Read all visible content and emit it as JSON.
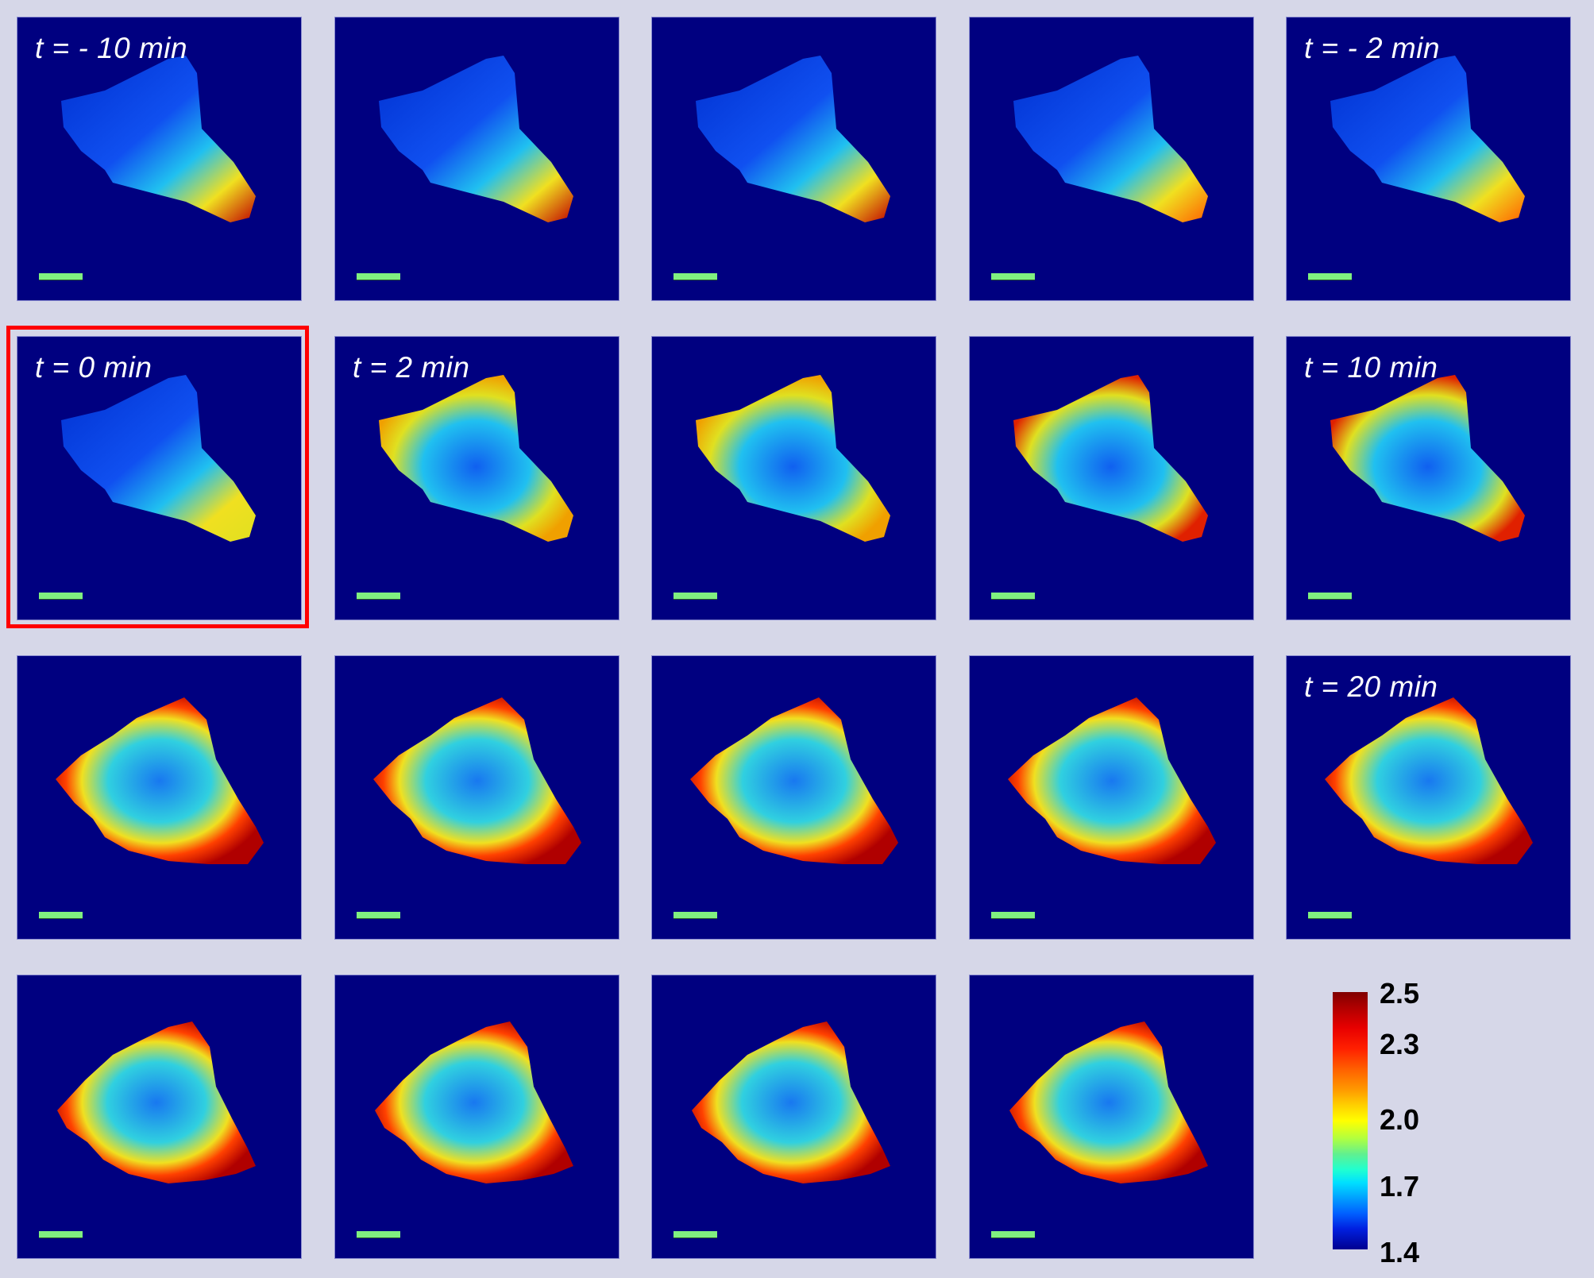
{
  "figure": {
    "background": "#d6d7e8",
    "panel_background": "#000080",
    "scale_bar_color": "#80f080",
    "highlight_color": "#ff0000",
    "highlighted_panel": "t = 0 min",
    "panels": [
      {
        "row": 0,
        "col": 0,
        "label": "t = - 10 min",
        "phase": "pre",
        "polar": "rear-hot"
      },
      {
        "row": 0,
        "col": 1,
        "label": "",
        "phase": "pre",
        "polar": "rear-hot"
      },
      {
        "row": 0,
        "col": 2,
        "label": "",
        "phase": "pre",
        "polar": "rear-hot"
      },
      {
        "row": 0,
        "col": 3,
        "label": "",
        "phase": "pre",
        "polar": "rear-warm"
      },
      {
        "row": 0,
        "col": 4,
        "label": "t = - 2 min",
        "phase": "pre",
        "polar": "rear-warm"
      },
      {
        "row": 1,
        "col": 0,
        "label": "t = 0 min",
        "phase": "zero",
        "polar": "rear-mild"
      },
      {
        "row": 1,
        "col": 1,
        "label": "t = 2 min",
        "phase": "early",
        "polar": "edge-warm"
      },
      {
        "row": 1,
        "col": 2,
        "label": "",
        "phase": "early",
        "polar": "edge-warm"
      },
      {
        "row": 1,
        "col": 3,
        "label": "",
        "phase": "mid",
        "polar": "edge-hot"
      },
      {
        "row": 1,
        "col": 4,
        "label": "t = 10 min",
        "phase": "mid",
        "polar": "edge-hot"
      },
      {
        "row": 2,
        "col": 0,
        "label": "",
        "phase": "late",
        "polar": "ring"
      },
      {
        "row": 2,
        "col": 1,
        "label": "",
        "phase": "late",
        "polar": "ring"
      },
      {
        "row": 2,
        "col": 2,
        "label": "",
        "phase": "late",
        "polar": "ring"
      },
      {
        "row": 2,
        "col": 3,
        "label": "",
        "phase": "late",
        "polar": "ring"
      },
      {
        "row": 2,
        "col": 4,
        "label": "t = 20 min",
        "phase": "late",
        "polar": "ring"
      },
      {
        "row": 3,
        "col": 0,
        "label": "",
        "phase": "final",
        "polar": "ring"
      },
      {
        "row": 3,
        "col": 1,
        "label": "",
        "phase": "final",
        "polar": "ring"
      },
      {
        "row": 3,
        "col": 2,
        "label": "",
        "phase": "final",
        "polar": "ring"
      },
      {
        "row": 3,
        "col": 3,
        "label": "",
        "phase": "final",
        "polar": "ring"
      }
    ],
    "colorbar": {
      "colormap": "jet",
      "min": 1.4,
      "max": 2.5,
      "ticks": [
        "2.5",
        "2.3",
        "2.0",
        "1.7",
        "1.4"
      ]
    }
  }
}
